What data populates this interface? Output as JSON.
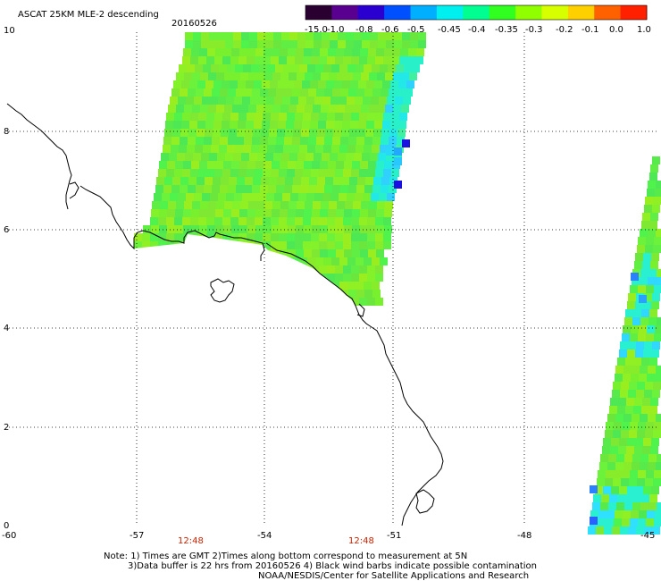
{
  "title": "ASCAT 25KM MLE-2 descending",
  "date": "20160526",
  "colorbar": {
    "labels": [
      "-15.0",
      "-1.0",
      "-0.8",
      "-0.6",
      "-0.5",
      "-0.45",
      "-0.4",
      "-0.35",
      "-0.3",
      "-0.2",
      "-0.1",
      "0.0",
      "1.0"
    ],
    "colors": [
      "#2a0030",
      "#5a0090",
      "#2a00d0",
      "#0050ff",
      "#00b0ff",
      "#00f0f0",
      "#00ff90",
      "#30ff20",
      "#90ff00",
      "#d8ff00",
      "#ffd000",
      "#ff6000",
      "#ff2000"
    ]
  },
  "axes": {
    "x_ticks": [
      "-60",
      "-57",
      "-54",
      "-51",
      "-48",
      "-45"
    ],
    "y_ticks": [
      "0",
      "2",
      "4",
      "6",
      "8",
      "10"
    ],
    "x_range": [
      -60,
      -45
    ],
    "y_range": [
      0,
      10
    ]
  },
  "pass_times": [
    {
      "label": "12:48",
      "lon": -58.2
    },
    {
      "label": "12:48",
      "lon": -54.4
    }
  ],
  "notes": {
    "line1": "Note: 1) Times are GMT 2)Times along bottom correspond to measurement at 5N",
    "line2": "3)Data buffer is 22 hrs from 20160526 4) Black wind barbs indicate possible contamination",
    "line3": "NOAA/NESDIS/Center for Satellite Applications and Research"
  },
  "colors": {
    "background": "#ffffff",
    "grid": "#000000",
    "coast": "#000000",
    "time_label": "#cc2200"
  }
}
